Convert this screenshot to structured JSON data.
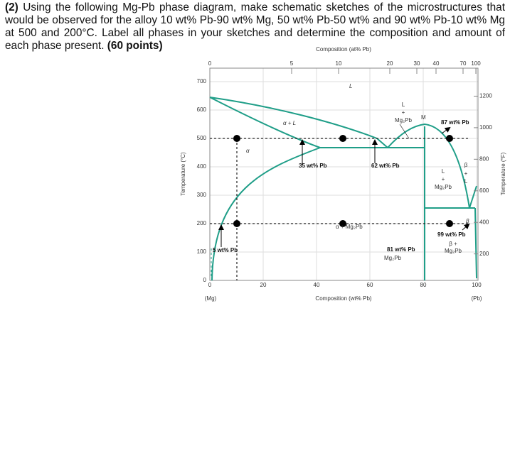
{
  "question": {
    "number": "(2)",
    "body": "Using the following Mg-Pb phase diagram, make schematic sketches of the microstructures that would be observed for the alloy 10 wt% Pb-90 wt% Mg, 50 wt% Pb-50 wt% and 90 wt% Pb-10 wt% Mg at 500 and 200°C. Label all phases in your sketches and determine the composition and amount of each phase present.",
    "points": "(60 points)"
  },
  "diagram": {
    "top_axis_title": "Composition (at% Pb)",
    "top_ticks": [
      0,
      5,
      10,
      20,
      30,
      40,
      70,
      100
    ],
    "x_axis_title": "Composition (wt% Pb)",
    "x_ticks": [
      0,
      20,
      40,
      60,
      80,
      100
    ],
    "x_left_end": "(Mg)",
    "x_right_end": "(Pb)",
    "y_axis_title": "Temperature (°C)",
    "y_ticks": [
      0,
      100,
      200,
      300,
      400,
      500,
      600,
      700
    ],
    "y2_axis_title": "Temperature (°F)",
    "y2_ticks": [
      200,
      400,
      600,
      800,
      1000,
      1200
    ],
    "regions": {
      "liquid": "L",
      "alpha_liquid": "α + L",
      "alpha": "α",
      "l_mg2pb_left": [
        "L",
        "+",
        "Mg₂Pb"
      ],
      "max": "M",
      "l_mg2pb_right": [
        "L",
        "+",
        "Mg₂Pb"
      ],
      "beta": "β",
      "beta_l": [
        "β",
        "+",
        "L"
      ],
      "alpha_mg2pb": "α + Mg₂Pb",
      "beta_mg2pb": [
        "β +",
        "Mg₂Pb"
      ],
      "mg2pb": "Mg₂Pb"
    },
    "annotations": {
      "a35": "35 wt% Pb",
      "a62": "62 wt% Pb",
      "a87": "87 wt% Pb",
      "a5": "5 wt% Pb",
      "a81": "81 wt% Pb",
      "a99": "99 wt% Pb"
    }
  }
}
